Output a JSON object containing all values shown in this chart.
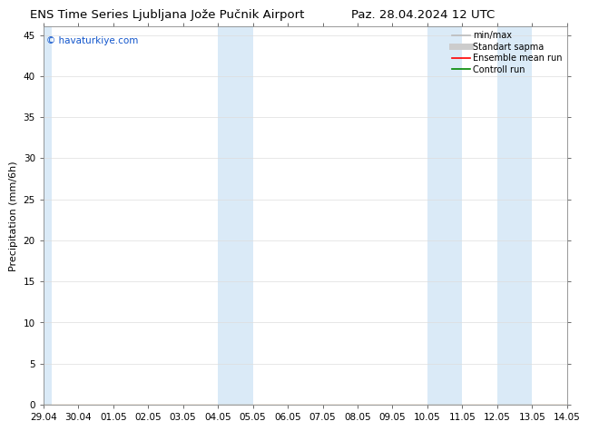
{
  "title_left": "ENS Time Series Ljubljana Jože Pučnik Airport",
  "title_right": "Paz. 28.04.2024 12 UTC",
  "ylabel": "Precipitation (mm/6h)",
  "ylim": [
    0,
    46
  ],
  "yticks": [
    0,
    5,
    10,
    15,
    20,
    25,
    30,
    35,
    40,
    45
  ],
  "xtick_labels": [
    "29.04",
    "30.04",
    "01.05",
    "02.05",
    "03.05",
    "04.05",
    "05.05",
    "06.05",
    "07.05",
    "08.05",
    "09.05",
    "10.05",
    "11.05",
    "12.05",
    "13.05",
    "14.05"
  ],
  "xtick_positions": [
    0,
    24,
    48,
    72,
    96,
    120,
    144,
    168,
    192,
    216,
    240,
    264,
    288,
    312,
    336,
    360
  ],
  "xlim_start": 0,
  "xlim_end": 360,
  "shade_bands": [
    {
      "start": 0,
      "end": 6
    },
    {
      "start": 120,
      "end": 144
    },
    {
      "start": 264,
      "end": 288
    },
    {
      "start": 312,
      "end": 336
    }
  ],
  "shade_color": "#daeaf7",
  "bg_color": "#ffffff",
  "watermark": "© havaturkiye.com",
  "watermark_color": "#1155cc",
  "legend_items": [
    {
      "label": "min/max",
      "color": "#bbbbbb",
      "lw": 1.2
    },
    {
      "label": "Standart sapma",
      "color": "#cccccc",
      "lw": 5
    },
    {
      "label": "Ensemble mean run",
      "color": "#ff0000",
      "lw": 1.2
    },
    {
      "label": "Controll run",
      "color": "#008800",
      "lw": 1.2
    }
  ],
  "title_fontsize": 9.5,
  "axis_label_fontsize": 8,
  "tick_fontsize": 7.5,
  "watermark_fontsize": 7.5,
  "legend_fontsize": 7
}
